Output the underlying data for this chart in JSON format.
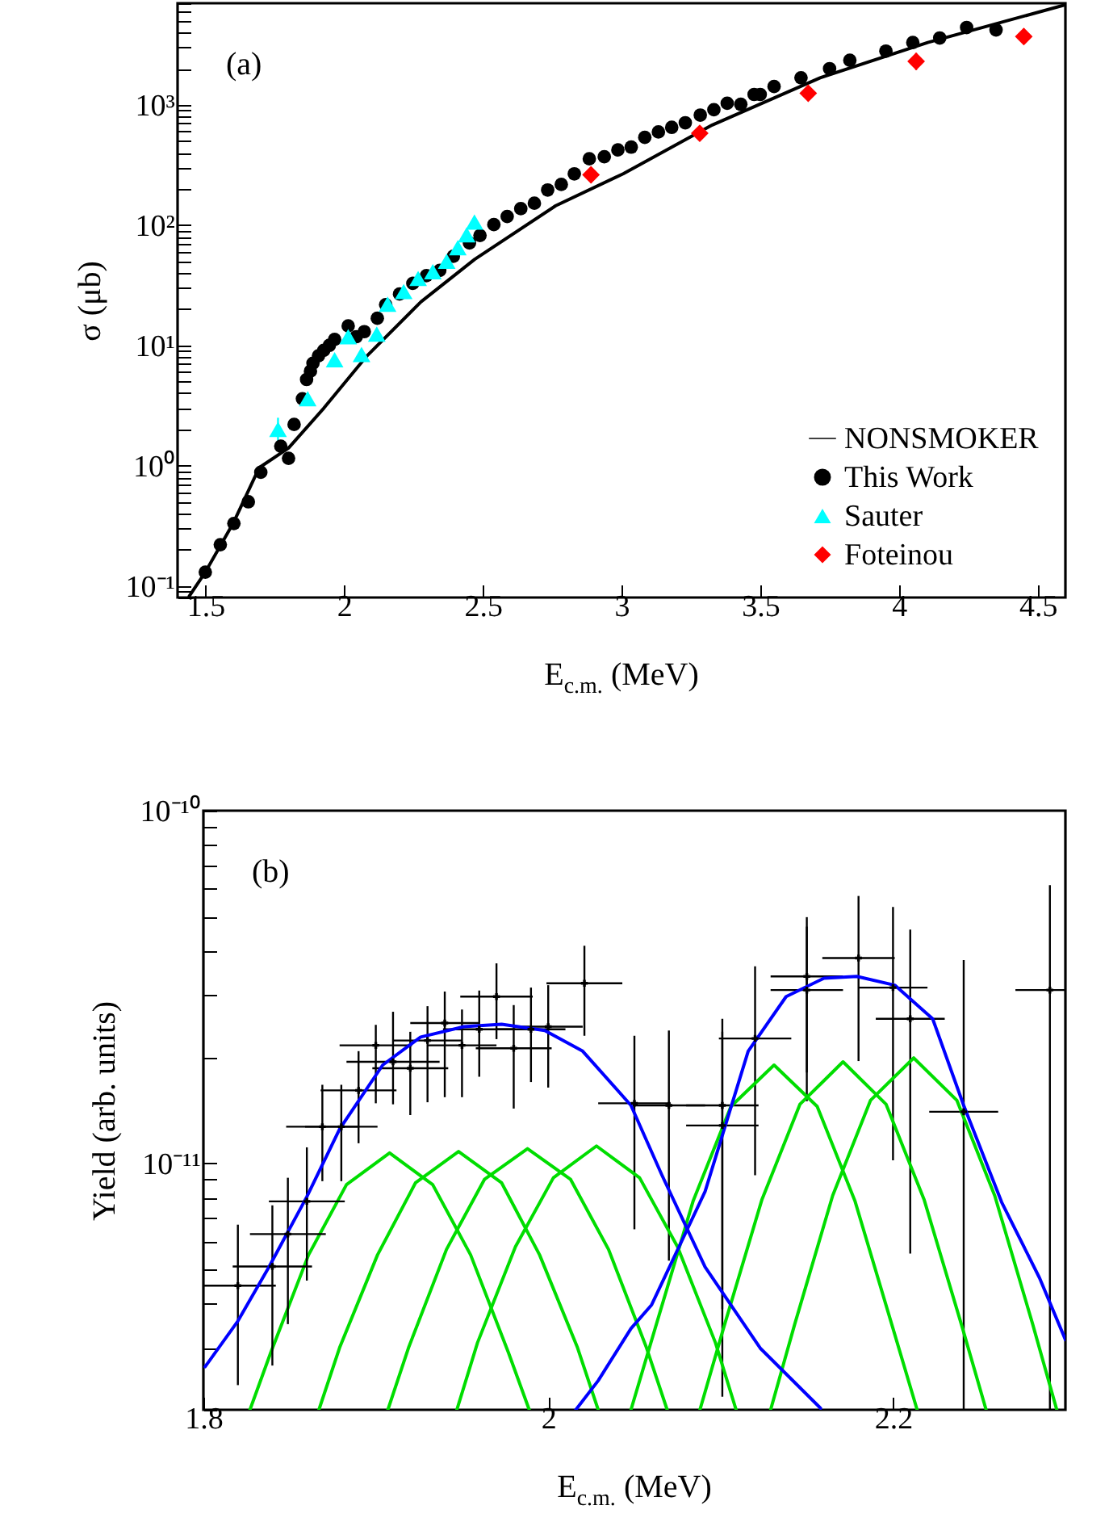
{
  "chart_data": [
    {
      "type": "scatter",
      "xlabel": "E$_{c.m.}$ (MeV)",
      "ylabel": "σ (μb)",
      "annotations": [
        "(a)"
      ],
      "log": "y",
      "legend": "bottom right",
      "xlim": [
        1.4,
        4.6
      ],
      "xticks": [
        1.5,
        2,
        2.5,
        3,
        3.5,
        4,
        4.5
      ],
      "ylim": [
        0.08,
        7000
      ],
      "yticks": [
        {
          "value": 0.08,
          "label": null
        },
        {
          "value": 0.09,
          "label": null
        },
        {
          "value": 0.1,
          "label": "10⁻¹"
        },
        {
          "value": 0.2,
          "label": null
        },
        {
          "value": 0.3,
          "label": null
        },
        {
          "value": 0.4,
          "label": null
        },
        {
          "value": 0.5,
          "label": null
        },
        {
          "value": 0.6,
          "label": null
        },
        {
          "value": 0.7,
          "label": null
        },
        {
          "value": 0.8,
          "label": null
        },
        {
          "value": 0.9,
          "label": null
        },
        {
          "value": 1,
          "label": "10⁰"
        },
        {
          "value": 2,
          "label": null
        },
        {
          "value": 3,
          "label": null
        },
        {
          "value": 4,
          "label": null
        },
        {
          "value": 5,
          "label": null
        },
        {
          "value": 6,
          "label": null
        },
        {
          "value": 7,
          "label": null
        },
        {
          "value": 8,
          "label": null
        },
        {
          "value": 9,
          "label": null
        },
        {
          "value": 10,
          "label": "10¹"
        },
        {
          "value": 20,
          "label": null
        },
        {
          "value": 30,
          "label": null
        },
        {
          "value": 40,
          "label": null
        },
        {
          "value": 50,
          "label": null
        },
        {
          "value": 60,
          "label": null
        },
        {
          "value": 70,
          "label": null
        },
        {
          "value": 80,
          "label": null
        },
        {
          "value": 90,
          "label": null
        },
        {
          "value": 100,
          "label": "10²"
        },
        {
          "value": 200,
          "label": null
        },
        {
          "value": 300,
          "label": null
        },
        {
          "value": 400,
          "label": null
        },
        {
          "value": 500,
          "label": null
        },
        {
          "value": 600,
          "label": null
        },
        {
          "value": 700,
          "label": null
        },
        {
          "value": 800,
          "label": null
        },
        {
          "value": 900,
          "label": null
        },
        {
          "value": 1000,
          "label": "10³"
        },
        {
          "value": 2000,
          "label": null
        },
        {
          "value": 3000,
          "label": null
        },
        {
          "value": 4000,
          "label": null
        },
        {
          "value": 5000,
          "label": null
        },
        {
          "value": 6000,
          "label": null
        },
        {
          "value": 7000,
          "label": null
        }
      ],
      "series": [
        {
          "name": "NONSMOKER",
          "type": "line",
          "color": "#000000",
          "x": [
            1.442,
            1.5,
            1.6,
            1.694,
            1.8,
            1.927,
            2.083,
            2.277,
            2.471,
            2.763,
            3.006,
            3.327,
            3.716,
            4.104,
            4.6
          ],
          "values": [
            0.082,
            0.13,
            0.33,
            0.96,
            1.4,
            3.0,
            8.2,
            23,
            52,
            145,
            267,
            680,
            1680,
            3300,
            6800
          ]
        },
        {
          "name": "This Work",
          "marker": "circle",
          "color": "#000000",
          "x": [
            1.5,
            1.554,
            1.603,
            1.655,
            1.7,
            1.772,
            1.8,
            1.82,
            1.85,
            1.865,
            1.879,
            1.888,
            1.908,
            1.927,
            1.947,
            1.966,
            2.015,
            2.044,
            2.073,
            2.12,
            2.15,
            2.2,
            2.248,
            2.297,
            2.345,
            2.394,
            2.452,
            2.49,
            2.54,
            2.588,
            2.637,
            2.686,
            2.734,
            2.783,
            2.83,
            2.884,
            2.938,
            2.987,
            3.035,
            3.084,
            3.133,
            3.181,
            3.23,
            3.284,
            3.333,
            3.381,
            3.43,
            3.478,
            3.5,
            3.55,
            3.647,
            3.75,
            3.823,
            3.953,
            4.05,
            4.147,
            4.244,
            4.35
          ],
          "values": [
            0.13,
            0.22,
            0.33,
            0.5,
            0.88,
            1.45,
            1.15,
            2.2,
            3.6,
            5.2,
            6.1,
            7.1,
            8.2,
            9.1,
            10,
            11.2,
            14.5,
            11.8,
            13,
            16.8,
            21.8,
            26.7,
            32.8,
            38,
            42,
            55,
            71,
            82,
            101,
            118,
            137,
            152,
            196,
            218,
            267,
            356,
            370,
            422,
            445,
            536,
            595,
            650,
            710,
            822,
            910,
            1030,
            1010,
            1220,
            1220,
            1420,
            1680,
            2000,
            2350,
            2800,
            3300,
            3600,
            4400,
            4200
          ]
        },
        {
          "name": "Sauter",
          "marker": "triangle",
          "color": "#00ffff",
          "x": [
            1.762,
            1.869,
            1.966,
            2.015,
            2.063,
            2.118,
            2.157,
            2.215,
            2.267,
            2.32,
            2.37,
            2.41,
            2.442,
            2.47
          ],
          "values": [
            2.0,
            3.6,
            7.6,
            11.8,
            8.4,
            12.4,
            22,
            28,
            36,
            41,
            50,
            65,
            83,
            106
          ],
          "errors": [
            [
              1.6,
              2.5
            ],
            null,
            null,
            null,
            null,
            null,
            null,
            null,
            null,
            null,
            null,
            null,
            null,
            null
          ]
        },
        {
          "name": "Foteinou",
          "marker": "diamond",
          "color": "#ff0000",
          "x": [
            2.89,
            3.282,
            3.673,
            4.062,
            4.45
          ],
          "values": [
            262,
            580,
            1250,
            2300,
            3700
          ],
          "errors": [
            [
              225,
              300
            ],
            [
              520,
              640
            ],
            [
              1080,
              1450
            ],
            [
              1950,
              2700
            ],
            [
              3200,
              4300
            ]
          ]
        }
      ]
    },
    {
      "type": "scatter",
      "xlabel": "E$_{c.m.}$ (MeV)",
      "ylabel": "Yield (arb. units)",
      "annotations": [
        "(b)"
      ],
      "log": "y",
      "xlim": [
        1.8,
        2.3
      ],
      "xticks": [
        1.8,
        2,
        2.2
      ],
      "ylim": [
        2e-12,
        1e-10
      ],
      "yticks": [
        {
          "value": 2e-12,
          "label": null
        },
        {
          "value": 3e-12,
          "label": null
        },
        {
          "value": 4e-12,
          "label": null
        },
        {
          "value": 5e-12,
          "label": null
        },
        {
          "value": 6e-12,
          "label": null
        },
        {
          "value": 7e-12,
          "label": null
        },
        {
          "value": 8e-12,
          "label": null
        },
        {
          "value": 9e-12,
          "label": null
        },
        {
          "value": 1e-11,
          "label": "10⁻¹¹"
        },
        {
          "value": 2e-11,
          "label": null
        },
        {
          "value": 3e-11,
          "label": null
        },
        {
          "value": 4e-11,
          "label": null
        },
        {
          "value": 5e-11,
          "label": null
        },
        {
          "value": 6e-11,
          "label": null
        },
        {
          "value": 7e-11,
          "label": null
        },
        {
          "value": 8e-11,
          "label": null
        },
        {
          "value": 9e-11,
          "label": null
        },
        {
          "value": 1e-10,
          "label": "10⁻¹⁰"
        }
      ],
      "series": [
        {
          "type": "line",
          "color": "#00dd00",
          "x": [
            1.827,
            1.839,
            1.861,
            1.883,
            1.908,
            1.933,
            1.955,
            1.977,
            1.989
          ],
          "values": [
            2e-12,
            2.9e-12,
            5.5e-12,
            8.7e-12,
            1.07e-11,
            8.7e-12,
            5.5e-12,
            2.9e-12,
            2e-12
          ]
        },
        {
          "type": "line",
          "color": "#00dd00",
          "x": [
            1.867,
            1.879,
            1.901,
            1.923,
            1.948,
            1.973,
            1.995,
            2.017,
            2.029
          ],
          "values": [
            2e-12,
            3e-12,
            5.5e-12,
            8.8e-12,
            1.08e-11,
            8.8e-12,
            5.5e-12,
            3e-12,
            2e-12
          ]
        },
        {
          "type": "line",
          "color": "#00dd00",
          "x": [
            1.907,
            1.919,
            1.941,
            1.963,
            1.988,
            2.013,
            2.035,
            2.057,
            2.069
          ],
          "values": [
            2e-12,
            3e-12,
            5.7e-12,
            9e-12,
            1.1e-11,
            9e-12,
            5.7e-12,
            3e-12,
            2e-12
          ]
        },
        {
          "type": "line",
          "color": "#00dd00",
          "x": [
            1.947,
            1.959,
            1.981,
            2.003,
            2.028,
            2.053,
            2.075,
            2.097,
            2.109
          ],
          "values": [
            2e-12,
            3.1e-12,
            5.8e-12,
            9.1e-12,
            1.12e-11,
            9.1e-12,
            5.8e-12,
            3.1e-12,
            2e-12
          ]
        },
        {
          "type": "line",
          "color": "#00dd00",
          "x": [
            2.048,
            2.062,
            2.084,
            2.106,
            2.131,
            2.156,
            2.178,
            2.2,
            2.214
          ],
          "values": [
            2e-12,
            3.4e-12,
            7.8e-12,
            1.45e-11,
            1.9e-11,
            1.45e-11,
            7.8e-12,
            3.4e-12,
            2e-12
          ]
        },
        {
          "type": "line",
          "color": "#00dd00",
          "x": [
            2.088,
            2.102,
            2.124,
            2.146,
            2.171,
            2.196,
            2.218,
            2.24,
            2.254
          ],
          "values": [
            2e-12,
            3.45e-12,
            7.9e-12,
            1.47e-11,
            1.94e-11,
            1.47e-11,
            7.9e-12,
            3.45e-12,
            2e-12
          ]
        },
        {
          "type": "line",
          "color": "#00dd00",
          "x": [
            2.129,
            2.143,
            2.165,
            2.187,
            2.212,
            2.237,
            2.259,
            2.281,
            2.295
          ],
          "values": [
            2e-12,
            3.5e-12,
            8.1e-12,
            1.51e-11,
            1.99e-11,
            1.51e-11,
            8.1e-12,
            3.5e-12,
            2e-12
          ]
        },
        {
          "type": "line",
          "color": "#0000ff",
          "x": [
            1.801,
            1.82,
            1.838,
            1.86,
            1.879,
            1.904,
            1.926,
            1.951,
            1.973,
            1.998,
            2.02,
            2.048,
            2.066,
            2.091,
            2.123,
            2.158
          ],
          "values": [
            2.65e-12,
            3.57e-12,
            5.08e-12,
            8.04e-12,
            1.25e-11,
            1.9e-11,
            2.28e-11,
            2.44e-11,
            2.48e-11,
            2.38e-11,
            2.08e-11,
            1.46e-11,
            9.25e-12,
            5.08e-12,
            2.99e-12,
            2.02e-12
          ]
        },
        {
          "type": "line",
          "color": "#0000ff",
          "x": [
            2.016,
            2.029,
            2.048,
            2.06,
            2.091,
            2.116,
            2.138,
            2.16,
            2.179,
            2.201,
            2.223,
            2.241,
            2.263,
            2.285,
            2.3
          ],
          "values": [
            2e-12,
            2.42e-12,
            3.4e-12,
            3.97e-12,
            8.32e-12,
            2.08e-11,
            2.97e-11,
            3.35e-11,
            3.39e-11,
            3.2e-11,
            2.57e-11,
            1.46e-11,
            7.76e-12,
            4.73e-12,
            3.16e-12
          ]
        },
        {
          "marker": "cross",
          "color": "#000000",
          "x": [
            1.82,
            1.84,
            1.849,
            1.86,
            1.869,
            1.88,
            1.89,
            1.9,
            1.91,
            1.92,
            1.93,
            1.94,
            1.95,
            1.96,
            1.97,
            1.98,
            1.99,
            2.0,
            2.021,
            2.05,
            2.07,
            2.101,
            2.101,
            2.12,
            2.15,
            2.15,
            2.18,
            2.2,
            2.21,
            2.241,
            2.291
          ],
          "values": [
            4.5e-12,
            5.1e-12,
            6.3e-12,
            7.8e-12,
            1.27e-11,
            1.27e-11,
            1.61e-11,
            2.16e-11,
            1.94e-11,
            1.86e-11,
            2.23e-11,
            2.5e-11,
            2.16e-11,
            2.4e-11,
            2.97e-11,
            2.12e-11,
            2.4e-11,
            2.44e-11,
            3.24e-11,
            1.48e-11,
            1.46e-11,
            1.46e-11,
            1.28e-11,
            2.26e-11,
            3.39e-11,
            3.1e-11,
            3.82e-11,
            3.15e-11,
            2.57e-11,
            1.4e-11,
            3.1e-11
          ],
          "xerrors": [
            0.022,
            0.023,
            0.022,
            0.022,
            0.021,
            0.021,
            0.022,
            0.021,
            0.027,
            0.022,
            0.02,
            0.02,
            0.02,
            0.021,
            0.021,
            0.022,
            0.02,
            0.02,
            0.022,
            0.021,
            0.021,
            0.021,
            0.021,
            0.021,
            0.021,
            0.021,
            0.021,
            0.02,
            0.02,
            0.02,
            [
              2.271,
              2.3
            ]
          ],
          "errors": [
            [
              2.35e-12,
              6.7e-12
            ],
            [
              2.67e-12,
              7.6e-12
            ],
            [
              3.5e-12,
              9.1e-12
            ],
            [
              4.65e-12,
              1.11e-11
            ],
            [
              8.9e-12,
              1.67e-11
            ],
            [
              8.9e-12,
              1.67e-11
            ],
            [
              1.14e-11,
              2.08e-11
            ],
            [
              1.48e-11,
              2.47e-11
            ],
            [
              1.47e-11,
              2.69e-11
            ],
            [
              1.37e-11,
              2.36e-11
            ],
            [
              1.49e-11,
              2.79e-11
            ],
            [
              1.54e-11,
              3.07e-11
            ],
            [
              1.54e-11,
              2.73e-11
            ],
            [
              1.76e-11,
              3.09e-11
            ],
            [
              2.25e-11,
              3.69e-11
            ],
            [
              1.43e-11,
              2.81e-11
            ],
            [
              1.7e-11,
              3.15e-11
            ],
            [
              1.64e-11,
              3.2e-11
            ],
            [
              2.3e-11,
              4.14e-11
            ],
            [
              6.5e-12,
              2.3e-11
            ],
            [
              5.3e-12,
              2.38e-11
            ],
            [
              2.18e-12,
              2.57e-11
            ],
            [
              3.86e-12,
              2.36e-11
            ],
            [
              9.25e-12,
              3.62e-11
            ],
            [
              1.81e-11,
              4.99e-11
            ],
            [
              1.5e-11,
              4.69e-11
            ],
            [
              1.95e-11,
              5.73e-11
            ],
            [
              1.02e-11,
              5.33e-11
            ],
            [
              5.55e-12,
              4.6e-11
            ],
            [
              2e-12,
              3.77e-11
            ],
            [
              2e-12,
              6.15e-11
            ]
          ]
        }
      ]
    }
  ]
}
